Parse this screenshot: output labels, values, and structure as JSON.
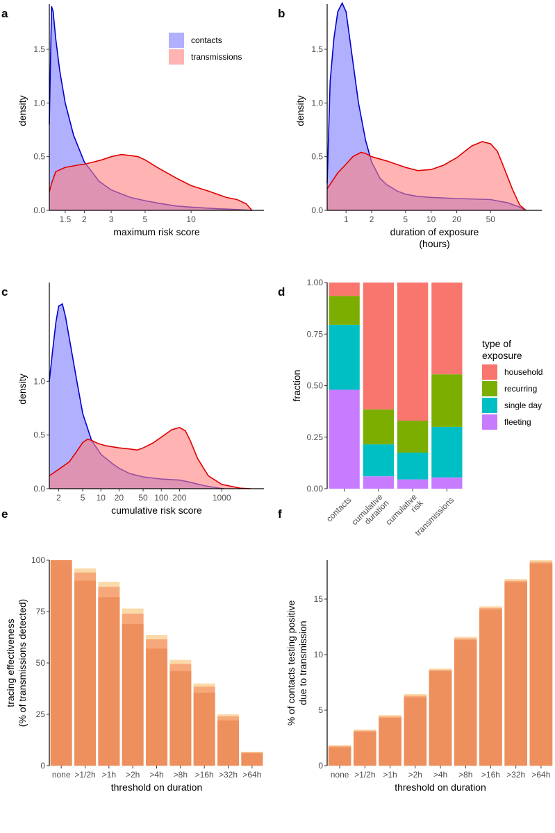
{
  "figure": {
    "panel_labels": [
      "a",
      "b",
      "c",
      "d",
      "e",
      "f"
    ]
  },
  "colors": {
    "contacts_fill": "#8080ff",
    "contacts_line": "#0000cc",
    "transmissions_fill": "#ff8080",
    "transmissions_line": "#e00000",
    "household": "#f8766d",
    "recurring": "#7cae00",
    "single_day": "#00bfc4",
    "fleeting": "#c77cff",
    "bar_main": "#ee8f5e",
    "bar_mid": "#f6a87a",
    "bar_light": "#fbd9a8"
  },
  "chart_data": [
    {
      "panel": "a",
      "type": "area",
      "xscale": "log",
      "xlim": [
        1.18,
        30
      ],
      "ylim": [
        0,
        1.92
      ],
      "xlabel": "maximum risk score",
      "ylabel": "density",
      "xticks": [
        1.5,
        2,
        3,
        5,
        10
      ],
      "yticks": [
        0,
        0.5,
        1.0,
        1.5
      ],
      "ytick_labels": [
        "0.0",
        "0.5",
        "1.0",
        "1.5"
      ],
      "legend": {
        "position": "top-right",
        "entries": [
          "contacts",
          "transmissions"
        ]
      },
      "series": [
        {
          "name": "contacts",
          "x": [
            1.18,
            1.22,
            1.25,
            1.3,
            1.38,
            1.5,
            1.7,
            2.0,
            2.5,
            3.0,
            4.0,
            5.0,
            6.5,
            8.0,
            10,
            15,
            20,
            25
          ],
          "y": [
            0.8,
            1.9,
            1.85,
            1.6,
            1.3,
            1.0,
            0.7,
            0.45,
            0.27,
            0.19,
            0.12,
            0.09,
            0.06,
            0.04,
            0.03,
            0.015,
            0.008,
            0.0
          ]
        },
        {
          "name": "transmissions",
          "x": [
            1.18,
            1.22,
            1.3,
            1.5,
            1.8,
            2.0,
            2.3,
            2.6,
            3.0,
            3.5,
            4.0,
            4.5,
            5.0,
            6.0,
            8.0,
            10,
            13,
            17,
            20,
            23,
            25
          ],
          "y": [
            0.17,
            0.25,
            0.36,
            0.4,
            0.42,
            0.43,
            0.45,
            0.47,
            0.5,
            0.52,
            0.51,
            0.5,
            0.47,
            0.4,
            0.3,
            0.23,
            0.18,
            0.12,
            0.1,
            0.06,
            0.0
          ]
        }
      ]
    },
    {
      "panel": "b",
      "type": "area",
      "xscale": "log",
      "xlim": [
        0.6,
        200
      ],
      "ylim": [
        0,
        1.92
      ],
      "xlabel": "duration of exposure",
      "xlabel2": "(hours)",
      "ylabel": "density",
      "xticks": [
        1,
        2,
        5,
        10,
        20,
        50
      ],
      "yticks": [
        0,
        0.5,
        1.0,
        1.5
      ],
      "ytick_labels": [
        "0.0",
        "0.5",
        "1.0",
        "1.5"
      ],
      "series": [
        {
          "name": "contacts",
          "x": [
            0.6,
            0.65,
            0.72,
            0.8,
            0.9,
            1.0,
            1.15,
            1.4,
            1.7,
            2.0,
            2.5,
            3.0,
            4.0,
            5.0,
            7.0,
            10,
            20,
            50,
            80,
            110,
            130
          ],
          "y": [
            0.25,
            1.2,
            1.6,
            1.85,
            1.93,
            1.85,
            1.5,
            1.0,
            0.65,
            0.45,
            0.3,
            0.24,
            0.18,
            0.15,
            0.13,
            0.12,
            0.11,
            0.1,
            0.07,
            0.03,
            0.0
          ]
        },
        {
          "name": "transmissions",
          "x": [
            0.6,
            0.7,
            0.8,
            1.0,
            1.2,
            1.5,
            1.7,
            2.0,
            3.0,
            5.0,
            7.0,
            10,
            14,
            20,
            30,
            40,
            50,
            60,
            70,
            90,
            110,
            130
          ],
          "y": [
            0.2,
            0.28,
            0.35,
            0.43,
            0.5,
            0.54,
            0.53,
            0.5,
            0.46,
            0.4,
            0.37,
            0.38,
            0.42,
            0.49,
            0.6,
            0.64,
            0.62,
            0.55,
            0.42,
            0.2,
            0.05,
            0.0
          ]
        }
      ]
    },
    {
      "panel": "c",
      "type": "area",
      "xscale": "log",
      "xlim": [
        1.4,
        5000
      ],
      "ylim": [
        0,
        1.92
      ],
      "xlabel": "cumulative risk score",
      "ylabel": "density",
      "xticks": [
        2,
        5,
        10,
        20,
        50,
        100,
        200,
        1000
      ],
      "yticks": [
        0,
        0.5,
        1.0
      ],
      "ytick_labels": [
        "0.0",
        "0.5",
        "1.0"
      ],
      "series": [
        {
          "name": "contacts",
          "x": [
            1.4,
            1.6,
            1.8,
            2.0,
            2.3,
            2.6,
            3.0,
            4.0,
            5.0,
            7.0,
            10,
            15,
            20,
            30,
            50,
            100,
            200,
            300,
            500,
            800,
            1100
          ],
          "y": [
            1.0,
            1.3,
            1.55,
            1.7,
            1.72,
            1.6,
            1.4,
            1.0,
            0.7,
            0.45,
            0.32,
            0.24,
            0.19,
            0.14,
            0.11,
            0.09,
            0.08,
            0.06,
            0.03,
            0.01,
            0.0
          ]
        },
        {
          "name": "transmissions",
          "x": [
            1.4,
            2.0,
            3.0,
            4.0,
            5.0,
            6.0,
            7.0,
            9.0,
            12,
            20,
            30,
            40,
            50,
            70,
            100,
            150,
            200,
            250,
            300,
            400,
            600,
            1000,
            2000,
            3000
          ],
          "y": [
            0.12,
            0.18,
            0.25,
            0.35,
            0.43,
            0.46,
            0.45,
            0.42,
            0.4,
            0.38,
            0.37,
            0.36,
            0.38,
            0.42,
            0.48,
            0.55,
            0.57,
            0.54,
            0.45,
            0.28,
            0.12,
            0.04,
            0.005,
            0.0
          ]
        }
      ]
    },
    {
      "panel": "d",
      "type": "bar",
      "stacked": true,
      "ylabel": "fraction",
      "ylim": [
        0,
        1
      ],
      "yticks": [
        0,
        0.25,
        0.5,
        0.75,
        1.0
      ],
      "ytick_labels": [
        "0.00",
        "0.25",
        "0.50",
        "0.75",
        "1.00"
      ],
      "categories": [
        {
          "label": "contacts",
          "lines": [
            "contacts"
          ]
        },
        {
          "label": "cumulative duration",
          "lines": [
            "cumulative",
            "duration"
          ]
        },
        {
          "label": "cumulative risk",
          "lines": [
            "cumulative",
            "risk"
          ]
        },
        {
          "label": "transmissions",
          "lines": [
            "transmissions"
          ]
        }
      ],
      "legend": {
        "title": "type of exposure",
        "title_lines": [
          "type of",
          "exposure"
        ],
        "entries": [
          "household",
          "recurring",
          "single day",
          "fleeting"
        ]
      },
      "series": [
        {
          "name": "fleeting",
          "values": [
            0.48,
            0.06,
            0.045,
            0.055
          ]
        },
        {
          "name": "single day",
          "values": [
            0.315,
            0.155,
            0.13,
            0.245
          ]
        },
        {
          "name": "recurring",
          "values": [
            0.14,
            0.17,
            0.155,
            0.255
          ]
        },
        {
          "name": "household",
          "values": [
            0.065,
            0.615,
            0.67,
            0.445
          ]
        }
      ]
    },
    {
      "panel": "e",
      "type": "bar",
      "xlabel": "threshold on duration",
      "ylabel": "tracing effectiveness",
      "ylabel2": "(% of transmissions detected)",
      "ylim": [
        0,
        100
      ],
      "yticks": [
        0,
        25,
        50,
        75,
        100
      ],
      "ytick_labels": [
        "0",
        "25",
        "50",
        "75",
        "100"
      ],
      "categories": [
        "none",
        ">1/2h",
        ">1h",
        ">2h",
        ">4h",
        ">8h",
        ">16h",
        ">32h",
        ">64h"
      ],
      "series": [
        {
          "name": "main",
          "values": [
            100,
            90,
            82,
            69,
            57,
            46,
            35.5,
            22,
            6
          ]
        },
        {
          "name": "mid",
          "values": [
            100,
            94,
            87,
            74,
            61.5,
            49.5,
            38.5,
            24,
            6.5
          ]
        },
        {
          "name": "light",
          "values": [
            100,
            96,
            89.5,
            76.5,
            63.5,
            51.5,
            40,
            25,
            6.8
          ]
        }
      ]
    },
    {
      "panel": "f",
      "type": "bar",
      "xlabel": "threshold on duration",
      "ylabel": "% of contacts testing positive",
      "ylabel2": "due to transmission",
      "ylim": [
        0,
        18.5
      ],
      "yticks": [
        0,
        5,
        10,
        15
      ],
      "ytick_labels": [
        "0",
        "5",
        "10",
        "15"
      ],
      "categories": [
        "none",
        ">1/2h",
        ">1h",
        ">2h",
        ">4h",
        ">8h",
        ">16h",
        ">32h",
        ">64h"
      ],
      "series": [
        {
          "name": "main",
          "values": [
            1.65,
            3.05,
            4.3,
            6.15,
            8.5,
            11.3,
            14.05,
            16.5,
            18.2
          ]
        },
        {
          "name": "mid",
          "values": [
            1.75,
            3.15,
            4.42,
            6.3,
            8.62,
            11.45,
            14.2,
            16.65,
            18.35
          ]
        },
        {
          "name": "light",
          "values": [
            1.85,
            3.25,
            4.55,
            6.45,
            8.75,
            11.6,
            14.35,
            16.8,
            18.5
          ]
        }
      ]
    }
  ]
}
